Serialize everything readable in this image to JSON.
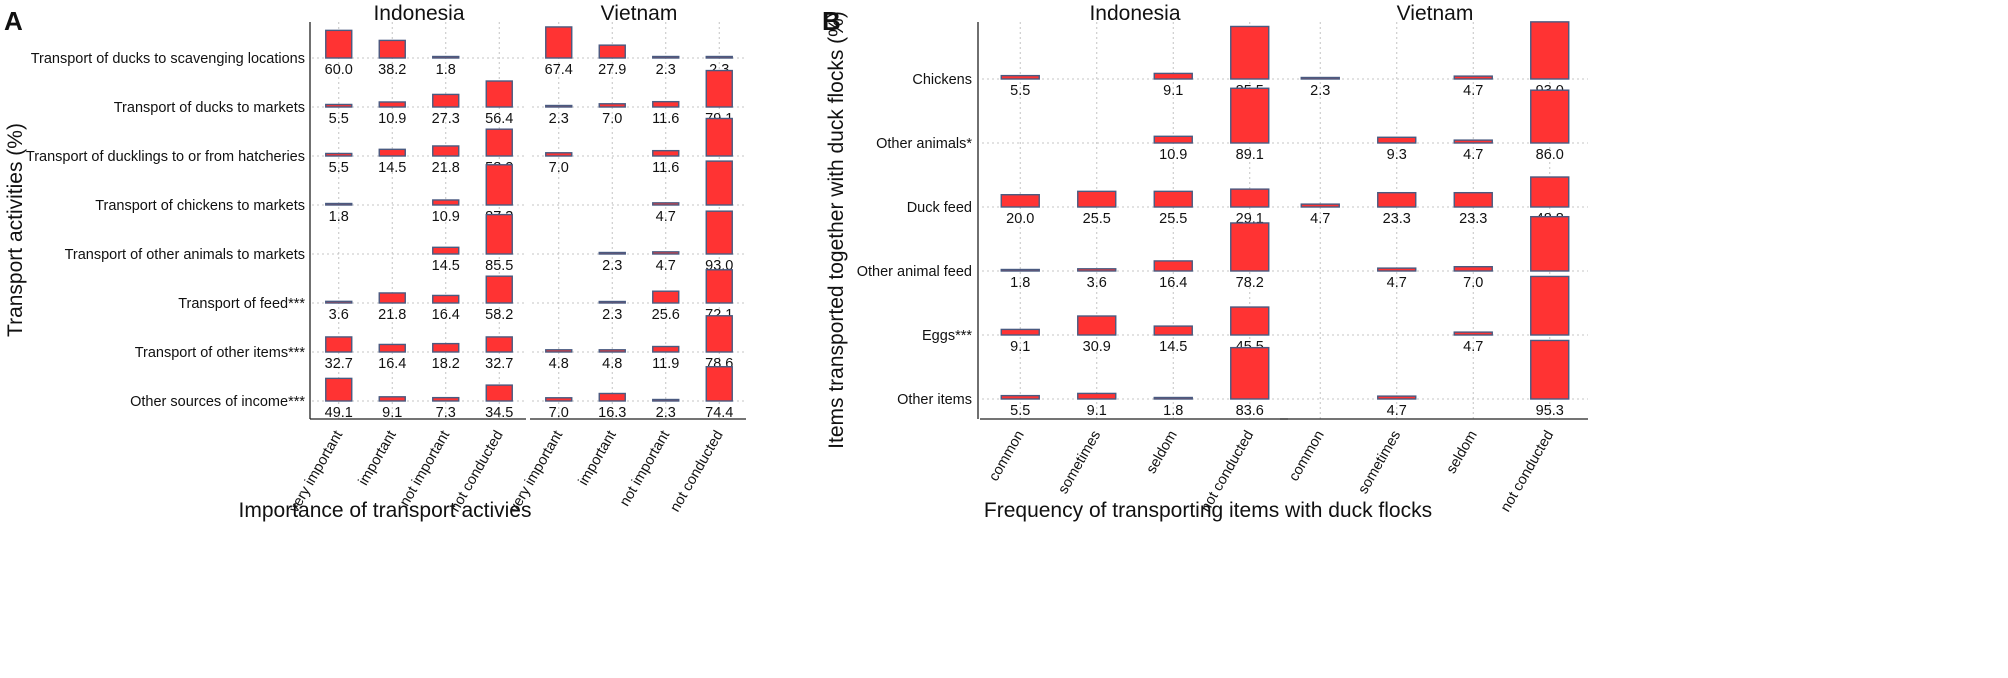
{
  "chart_data": [
    {
      "type": "bar",
      "panel": "A",
      "facets": [
        "Indonesia",
        "Vietnam"
      ],
      "categories": [
        "very important",
        "important",
        "not important",
        "not conducted"
      ],
      "rows": [
        "Transport of ducks to scavenging locations",
        "Transport of ducks to markets",
        "Transport of ducklings to or from hatcheries",
        "Transport of chickens to markets",
        "Transport of other animals to markets",
        "Transport of feed***",
        "Transport of other items***",
        "Other sources of income***"
      ],
      "values": {
        "Indonesia": [
          [
            60.0,
            38.2,
            1.8,
            null
          ],
          [
            5.5,
            10.9,
            27.3,
            56.4
          ],
          [
            5.5,
            14.5,
            21.8,
            58.2
          ],
          [
            1.8,
            null,
            10.9,
            87.3
          ],
          [
            null,
            null,
            14.5,
            85.5
          ],
          [
            3.6,
            21.8,
            16.4,
            58.2
          ],
          [
            32.7,
            16.4,
            18.2,
            32.7
          ],
          [
            49.1,
            9.1,
            7.3,
            34.5
          ]
        ],
        "Vietnam": [
          [
            67.4,
            27.9,
            2.3,
            2.3
          ],
          [
            2.3,
            7.0,
            11.6,
            79.1
          ],
          [
            7.0,
            null,
            11.6,
            81.4
          ],
          [
            null,
            null,
            4.7,
            95.3
          ],
          [
            null,
            2.3,
            4.7,
            93.0
          ],
          [
            null,
            2.3,
            25.6,
            72.1
          ],
          [
            4.8,
            4.8,
            11.9,
            78.6
          ],
          [
            7.0,
            16.3,
            2.3,
            74.4
          ]
        ]
      },
      "xlabel": "Importance of transport activies",
      "ylabel": "Transport activities (%)"
    },
    {
      "type": "bar",
      "panel": "B",
      "facets": [
        "Indonesia",
        "Vietnam"
      ],
      "categories": [
        "common",
        "sometimes",
        "seldom",
        "not conducted"
      ],
      "rows": [
        "Chickens",
        "Other animals*",
        "Duck feed",
        "Other animal feed",
        "Eggs***",
        "Other items"
      ],
      "values": {
        "Indonesia": [
          [
            5.5,
            null,
            9.1,
            85.5
          ],
          [
            null,
            null,
            10.9,
            89.1
          ],
          [
            20.0,
            25.5,
            25.5,
            29.1
          ],
          [
            1.8,
            3.6,
            16.4,
            78.2
          ],
          [
            9.1,
            30.9,
            14.5,
            45.5
          ],
          [
            5.5,
            9.1,
            1.8,
            83.6
          ]
        ],
        "Vietnam": [
          [
            2.3,
            null,
            4.7,
            93.0
          ],
          [
            null,
            9.3,
            4.7,
            86.0
          ],
          [
            4.7,
            23.3,
            23.3,
            48.8
          ],
          [
            null,
            4.7,
            7.0,
            88.4
          ],
          [
            null,
            null,
            4.7,
            95.3
          ],
          [
            null,
            4.7,
            null,
            95.3
          ]
        ]
      },
      "xlabel": "Frequency of transporting items with duck flocks",
      "ylabel": "Items transported together with duck flocks (%)"
    }
  ]
}
